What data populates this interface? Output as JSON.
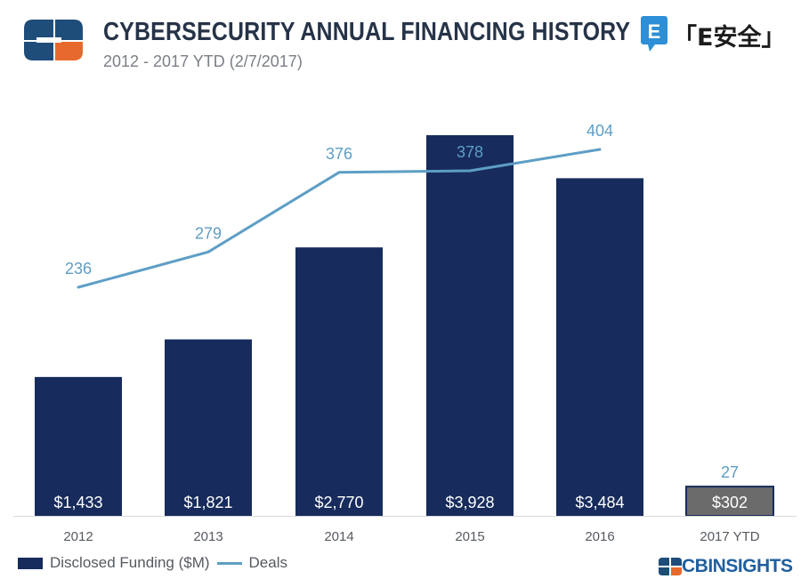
{
  "header": {
    "title": "CYBERSECURITY ANNUAL FINANCING HISTORY",
    "subtitle": "2012 - 2017 YTD (2/7/2017)"
  },
  "logos": {
    "brand_icon": "cb-insights-plus-logo",
    "eanquan_badge": "E",
    "eanquan_text": "「E安全」",
    "footer_logo": "CBINSIGHTS"
  },
  "legend": {
    "funding_label": "Disclosed Funding ($M)",
    "deals_label": "Deals"
  },
  "colors": {
    "bar": "#172c5c",
    "bar_ytd": "#6b6b6b",
    "line": "#5d9ec5",
    "title": "#263348"
  },
  "chart_data": {
    "type": "bar",
    "categories": [
      "2012",
      "2013",
      "2014",
      "2015",
      "2016",
      "2017 YTD"
    ],
    "series": [
      {
        "name": "Disclosed Funding ($M)",
        "type": "bar",
        "values": [
          1433,
          1821,
          2770,
          3928,
          3484,
          302
        ],
        "labels": [
          "$1,433",
          "$1,821",
          "$2,770",
          "$3,928",
          "$3,484",
          "$302"
        ]
      },
      {
        "name": "Deals",
        "type": "line",
        "values": [
          236,
          279,
          376,
          378,
          404,
          27
        ],
        "labels": [
          "236",
          "279",
          "376",
          "378",
          "404",
          "27"
        ],
        "line_points": 5
      }
    ],
    "title": "CYBERSECURITY ANNUAL FINANCING HISTORY",
    "subtitle": "2012 - 2017 YTD (2/7/2017)",
    "legend_position": "bottom-left",
    "grid": false
  }
}
